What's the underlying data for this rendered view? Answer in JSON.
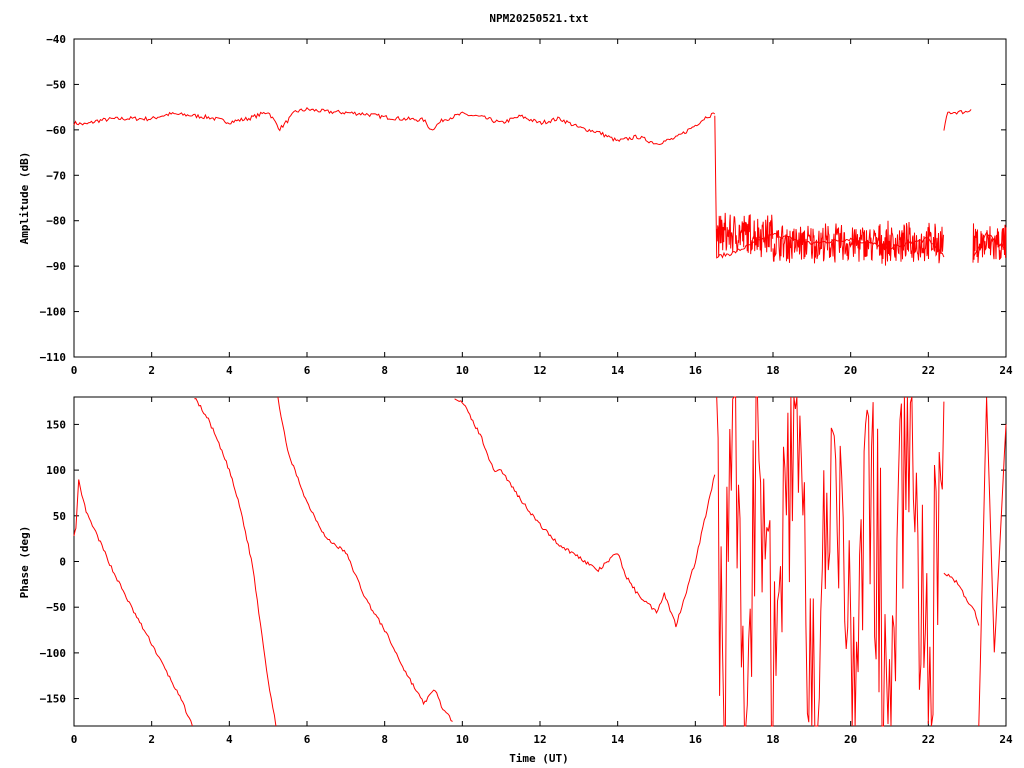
{
  "chart_data": [
    {
      "type": "line",
      "id": "amplitude",
      "title": "NPM20250521.txt",
      "xlabel": "",
      "ylabel": "Amplitude (dB)",
      "xlim": [
        0,
        24
      ],
      "ylim": [
        -110,
        -40
      ],
      "xticks": [
        0,
        2,
        4,
        6,
        8,
        10,
        12,
        14,
        16,
        18,
        20,
        22,
        24
      ],
      "yticks": [
        -110,
        -100,
        -90,
        -80,
        -70,
        -60,
        -50,
        -40
      ],
      "grid": false,
      "color": "#ff0000",
      "series": [
        {
          "x": [
            0,
            0.3,
            0.6,
            1.0,
            1.5,
            2.0,
            2.2,
            2.5,
            3.0,
            3.5,
            4.0,
            4.5,
            5.0,
            5.3,
            5.5,
            5.7,
            6.0,
            6.5,
            7.0,
            7.5,
            8.0,
            8.5,
            9.0,
            9.2,
            9.5,
            10.0,
            10.5,
            11.0,
            11.5,
            12.0,
            12.5,
            13.0,
            13.5,
            14.0,
            14.5,
            15.0,
            15.5,
            16.0,
            16.3,
            16.5
          ],
          "y": [
            -58.5,
            -58.8,
            -58,
            -57.6,
            -57.5,
            -57.6,
            -57,
            -56.5,
            -56.8,
            -57.3,
            -58.3,
            -57.5,
            -56,
            -59.8,
            -58,
            -56,
            -55.5,
            -56,
            -56.2,
            -56.5,
            -57.2,
            -57.6,
            -57.8,
            -60,
            -57.8,
            -56.5,
            -57.2,
            -58.5,
            -57,
            -58.5,
            -57.5,
            -59.5,
            -60.5,
            -62.5,
            -61.5,
            -63,
            -61.8,
            -59,
            -57,
            -56.5
          ]
        },
        {
          "x": [
            16.5,
            16.55,
            17,
            18,
            19,
            20,
            21,
            22,
            22.4
          ],
          "y": [
            -56.5,
            -88,
            -87,
            -83,
            -85,
            -84,
            -86,
            -84,
            -88
          ]
        },
        {
          "x": [
            22.4,
            22.5,
            23.0,
            23.1
          ],
          "y": [
            -60,
            -56.2,
            -56,
            -55.5
          ]
        },
        {
          "x": [
            23.15,
            23.5,
            24
          ],
          "y": [
            -88,
            -83,
            -86
          ]
        }
      ],
      "noise_band_dB": [
        {
          "x": [
            16.55,
            18.0
          ],
          "y": [
            -88.5,
            -77.5
          ]
        },
        {
          "x": [
            18.0,
            22.4
          ],
          "y": [
            -90,
            -80
          ]
        },
        {
          "x": [
            23.15,
            24.0
          ],
          "y": [
            -90.5,
            -80
          ]
        }
      ]
    },
    {
      "type": "line",
      "id": "phase",
      "title": "",
      "xlabel": "Time (UT)",
      "ylabel": "Phase (deg)",
      "xlim": [
        0,
        24
      ],
      "ylim": [
        -180,
        180
      ],
      "xticks": [
        0,
        2,
        4,
        6,
        8,
        10,
        12,
        14,
        16,
        18,
        20,
        22,
        24
      ],
      "yticks": [
        -150,
        -100,
        -50,
        0,
        50,
        100,
        150
      ],
      "grid": false,
      "color": "#ff0000",
      "series": [
        {
          "x": [
            0,
            0.05,
            0.12,
            0.2,
            0.35,
            0.6,
            1.0,
            1.5,
            2.0,
            2.5,
            2.8,
            3.05
          ],
          "y": [
            30,
            35,
            88,
            72,
            50,
            28,
            -10,
            -52,
            -90,
            -130,
            -155,
            -180
          ]
        },
        {
          "x": [
            3.1,
            3.5,
            4.0,
            4.3,
            4.6,
            5.0,
            5.2
          ],
          "y": [
            180,
            152,
            100,
            55,
            -5,
            -130,
            -180
          ]
        },
        {
          "x": [
            5.25,
            5.5,
            6.0,
            6.5,
            7.0,
            7.5,
            8.0,
            8.5,
            9.0,
            9.3,
            9.5,
            9.75
          ],
          "y": [
            180,
            120,
            65,
            25,
            10,
            -40,
            -75,
            -118,
            -155,
            -140,
            -162,
            -175
          ]
        },
        {
          "x": [
            9.8,
            10.0,
            10.5,
            10.8,
            11.0,
            11.5,
            12.0,
            12.5,
            13.0,
            13.5,
            14.0,
            14.2,
            14.5,
            15.0,
            15.2,
            15.5,
            16.0,
            16.5
          ],
          "y": [
            180,
            175,
            135,
            100,
            100,
            68,
            40,
            18,
            5,
            -10,
            10,
            -15,
            -35,
            -55,
            -35,
            -70,
            0,
            95
          ]
        },
        {
          "x": [
            16.55,
            16.7,
            17.0,
            17.3,
            17.6,
            18.0,
            18.5,
            19.0,
            19.5,
            20.0,
            20.5,
            21.0,
            21.5,
            22.0,
            22.4
          ],
          "y": [
            150,
            -170,
            175,
            -180,
            180,
            -175,
            170,
            -180,
            180,
            -150,
            120,
            -180,
            178,
            -180,
            175
          ]
        },
        {
          "x": [
            22.4,
            22.8,
            23.0,
            23.2,
            23.3
          ],
          "y": [
            -12,
            -25,
            -45,
            -55,
            -70
          ]
        },
        {
          "x": [
            23.3,
            23.5,
            23.7,
            24.0
          ],
          "y": [
            -180,
            180,
            -100,
            150
          ]
        }
      ]
    }
  ]
}
